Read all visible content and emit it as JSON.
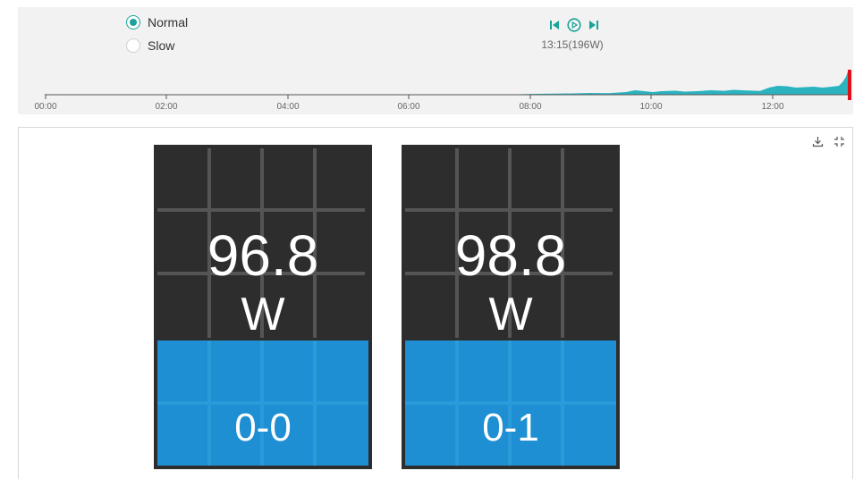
{
  "playback": {
    "speed_options": [
      {
        "label": "Normal",
        "selected": true
      },
      {
        "label": "Slow",
        "selected": false
      }
    ],
    "current_time": "13:15(196W)",
    "accent_color": "#1aa39a",
    "controls": [
      "skip-back-icon",
      "play-circle-icon",
      "skip-forward-icon"
    ]
  },
  "timeline": {
    "ticks": [
      "00:00",
      "02:00",
      "04:00",
      "06:00",
      "08:00",
      "10:00",
      "12:00"
    ],
    "area_color": "#2bb3c0",
    "cursor_color": "#e0101a"
  },
  "panel": {
    "tools": [
      "download-icon",
      "fullscreen-icon"
    ]
  },
  "devices": [
    {
      "value": "96.8",
      "unit": "W",
      "id": "0-0"
    },
    {
      "value": "98.8",
      "unit": "W",
      "id": "0-1"
    }
  ],
  "colors": {
    "card_bg": "#2d2d2d",
    "id_bg": "#1e8fd2"
  }
}
